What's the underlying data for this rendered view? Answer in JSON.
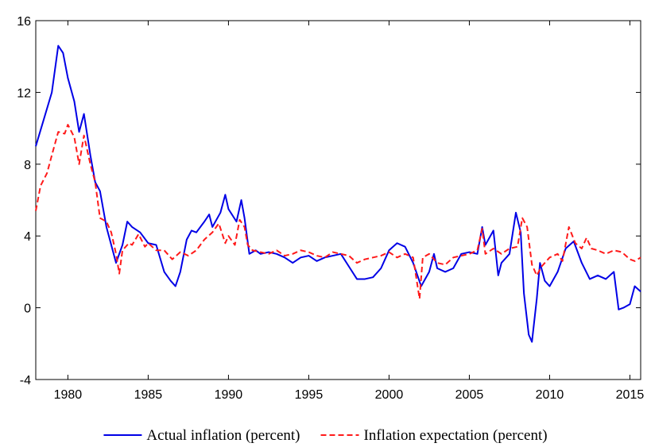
{
  "chart_data": {
    "type": "line",
    "xlim": [
      1978,
      2015.67
    ],
    "xticks": [
      1980,
      1985,
      1990,
      1995,
      2000,
      2005,
      2010,
      2015
    ],
    "ylim": [
      -4,
      16
    ],
    "yticks": [
      -4,
      0,
      4,
      8,
      12,
      16
    ],
    "grid": false,
    "series": [
      {
        "name": "Actual inflation (percent)",
        "color": "#0000e6",
        "dash": "solid",
        "x": [
          1978.0,
          1978.5,
          1979.0,
          1979.4,
          1979.7,
          1980.0,
          1980.4,
          1980.7,
          1981.0,
          1981.4,
          1981.7,
          1982.0,
          1982.4,
          1982.7,
          1983.0,
          1983.4,
          1983.7,
          1984.0,
          1984.5,
          1985.0,
          1985.5,
          1986.0,
          1986.4,
          1986.7,
          1987.0,
          1987.4,
          1987.7,
          1988.0,
          1988.5,
          1988.8,
          1989.0,
          1989.5,
          1989.8,
          1990.0,
          1990.5,
          1990.8,
          1991.0,
          1991.3,
          1991.7,
          1992.0,
          1992.5,
          1993.0,
          1993.5,
          1994.0,
          1994.5,
          1995.0,
          1995.5,
          1996.0,
          1996.5,
          1997.0,
          1997.5,
          1998.0,
          1998.5,
          1999.0,
          1999.5,
          2000.0,
          2000.5,
          2001.0,
          2001.5,
          2002.0,
          2002.5,
          2002.8,
          2003.0,
          2003.5,
          2004.0,
          2004.5,
          2005.0,
          2005.5,
          2005.8,
          2006.0,
          2006.5,
          2006.8,
          2007.0,
          2007.5,
          2007.9,
          2008.2,
          2008.4,
          2008.7,
          2008.9,
          2009.2,
          2009.4,
          2009.7,
          2010.0,
          2010.5,
          2011.0,
          2011.5,
          2012.0,
          2012.5,
          2013.0,
          2013.5,
          2014.0,
          2014.3,
          2014.6,
          2015.0,
          2015.3,
          2015.67
        ],
        "values": [
          9.0,
          10.5,
          12.0,
          14.6,
          14.2,
          12.8,
          11.5,
          9.8,
          10.8,
          8.5,
          7.0,
          6.5,
          4.5,
          3.5,
          2.5,
          3.5,
          4.8,
          4.5,
          4.2,
          3.6,
          3.5,
          2.0,
          1.5,
          1.2,
          2.0,
          3.8,
          4.3,
          4.2,
          4.8,
          5.2,
          4.5,
          5.3,
          6.3,
          5.5,
          4.8,
          6.0,
          5.0,
          3.0,
          3.2,
          3.0,
          3.1,
          3.0,
          2.8,
          2.5,
          2.8,
          2.9,
          2.6,
          2.8,
          2.9,
          3.0,
          2.3,
          1.6,
          1.6,
          1.7,
          2.2,
          3.2,
          3.6,
          3.4,
          2.5,
          1.2,
          2.0,
          3.0,
          2.2,
          2.0,
          2.2,
          3.0,
          3.1,
          3.0,
          4.5,
          3.5,
          4.3,
          1.8,
          2.5,
          3.0,
          5.3,
          4.2,
          0.8,
          -1.5,
          -1.9,
          0.5,
          2.5,
          1.5,
          1.2,
          2.0,
          3.3,
          3.7,
          2.5,
          1.6,
          1.8,
          1.6,
          2.0,
          -0.1,
          0.0,
          0.2,
          1.2,
          0.9
        ]
      },
      {
        "name": "Inflation expectation (percent)",
        "color": "#ff1a1a",
        "dash": "dashed",
        "x": [
          1978.0,
          1978.3,
          1978.7,
          1979.0,
          1979.4,
          1979.8,
          1980.0,
          1980.4,
          1980.7,
          1981.0,
          1981.4,
          1981.7,
          1982.0,
          1982.4,
          1982.7,
          1983.0,
          1983.2,
          1983.4,
          1983.8,
          1984.0,
          1984.4,
          1984.8,
          1985.0,
          1985.5,
          1986.0,
          1986.5,
          1987.0,
          1987.5,
          1988.0,
          1988.5,
          1989.0,
          1989.4,
          1989.8,
          1990.0,
          1990.4,
          1990.7,
          1991.0,
          1991.2,
          1991.5,
          1992.0,
          1992.5,
          1993.0,
          1993.5,
          1994.0,
          1994.5,
          1995.0,
          1995.5,
          1996.0,
          1996.5,
          1997.0,
          1997.5,
          1998.0,
          1998.5,
          1999.0,
          1999.5,
          2000.0,
          2000.5,
          2001.0,
          2001.5,
          2001.9,
          2002.1,
          2002.5,
          2003.0,
          2003.5,
          2004.0,
          2004.5,
          2005.0,
          2005.5,
          2005.8,
          2006.0,
          2006.5,
          2007.0,
          2007.5,
          2008.0,
          2008.3,
          2008.6,
          2008.9,
          2009.2,
          2009.5,
          2010.0,
          2010.5,
          2010.8,
          2011.2,
          2011.6,
          2012.0,
          2012.3,
          2012.6,
          2013.0,
          2013.5,
          2014.0,
          2014.5,
          2015.0,
          2015.3,
          2015.67
        ],
        "values": [
          5.4,
          6.8,
          7.5,
          8.5,
          9.8,
          9.7,
          10.2,
          9.5,
          8.0,
          9.6,
          8.0,
          7.0,
          5.0,
          4.8,
          4.2,
          3.0,
          1.9,
          3.2,
          3.6,
          3.5,
          4.1,
          3.4,
          3.6,
          3.2,
          3.2,
          2.7,
          3.1,
          2.9,
          3.2,
          3.8,
          4.2,
          4.7,
          3.6,
          4.0,
          3.5,
          4.9,
          4.5,
          3.5,
          3.2,
          3.1,
          3.0,
          3.2,
          2.9,
          3.0,
          3.2,
          3.1,
          2.9,
          2.8,
          3.1,
          3.0,
          2.9,
          2.5,
          2.7,
          2.8,
          2.9,
          3.1,
          2.8,
          3.0,
          2.8,
          0.5,
          2.8,
          3.0,
          2.5,
          2.4,
          2.8,
          2.9,
          3.0,
          3.2,
          4.4,
          3.0,
          3.3,
          3.0,
          3.3,
          3.4,
          5.0,
          4.5,
          2.4,
          1.8,
          2.3,
          2.8,
          3.0,
          2.6,
          4.5,
          3.6,
          3.3,
          3.9,
          3.3,
          3.2,
          3.0,
          3.2,
          3.1,
          2.7,
          2.6,
          2.8
        ]
      }
    ]
  }
}
